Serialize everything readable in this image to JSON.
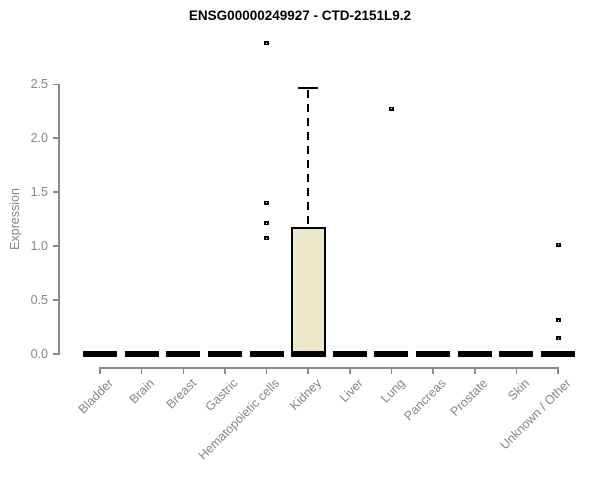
{
  "chart_data": {
    "type": "boxplot",
    "title": "ENSG00000249927 - CTD-2151L9.2",
    "ylabel": "Expression",
    "ylim": [
      0.0,
      2.9
    ],
    "yticks": [
      0.0,
      0.5,
      1.0,
      1.5,
      2.0,
      2.5
    ],
    "ytick_labels": [
      "0.0",
      "0.5",
      "1.0",
      "1.5",
      "2.0",
      "2.5"
    ],
    "grid": false,
    "legend": null,
    "box_fill_color": "#EDE7CB",
    "box_line_color": "#000000",
    "axis_color": "#8a8a8a",
    "label_color": "#868686",
    "categories": [
      "Bladder",
      "Brain",
      "Breast",
      "Gastric",
      "Hematopoietic cells",
      "Kidney",
      "Liver",
      "Lung",
      "Pancreas",
      "Prostate",
      "Skin",
      "Unknown / Other"
    ],
    "series": [
      {
        "category": "Bladder",
        "q1": 0,
        "median": 0,
        "q3": 0,
        "whisker_low": 0,
        "whisker_high": 0,
        "outliers": []
      },
      {
        "category": "Brain",
        "q1": 0,
        "median": 0,
        "q3": 0,
        "whisker_low": 0,
        "whisker_high": 0,
        "outliers": []
      },
      {
        "category": "Breast",
        "q1": 0,
        "median": 0,
        "q3": 0,
        "whisker_low": 0,
        "whisker_high": 0,
        "outliers": []
      },
      {
        "category": "Gastric",
        "q1": 0,
        "median": 0,
        "q3": 0,
        "whisker_low": 0,
        "whisker_high": 0,
        "outliers": []
      },
      {
        "category": "Hematopoietic cells",
        "q1": 0,
        "median": 0,
        "q3": 0,
        "whisker_low": 0,
        "whisker_high": 0,
        "outliers": [
          1.07,
          1.21,
          1.4,
          2.88
        ]
      },
      {
        "category": "Kidney",
        "q1": 0,
        "median": 0,
        "q3": 1.17,
        "whisker_low": 0,
        "whisker_high": 2.46,
        "outliers": []
      },
      {
        "category": "Liver",
        "q1": 0,
        "median": 0,
        "q3": 0,
        "whisker_low": 0,
        "whisker_high": 0,
        "outliers": []
      },
      {
        "category": "Lung",
        "q1": 0,
        "median": 0,
        "q3": 0,
        "whisker_low": 0,
        "whisker_high": 0,
        "outliers": [
          2.27
        ]
      },
      {
        "category": "Pancreas",
        "q1": 0,
        "median": 0,
        "q3": 0,
        "whisker_low": 0,
        "whisker_high": 0,
        "outliers": []
      },
      {
        "category": "Prostate",
        "q1": 0,
        "median": 0,
        "q3": 0,
        "whisker_low": 0,
        "whisker_high": 0,
        "outliers": []
      },
      {
        "category": "Skin",
        "q1": 0,
        "median": 0,
        "q3": 0,
        "whisker_low": 0,
        "whisker_high": 0,
        "outliers": []
      },
      {
        "category": "Unknown / Other",
        "q1": 0,
        "median": 0,
        "q3": 0,
        "whisker_low": 0,
        "whisker_high": 0,
        "outliers": [
          0.14,
          0.31,
          1.01
        ]
      }
    ]
  }
}
